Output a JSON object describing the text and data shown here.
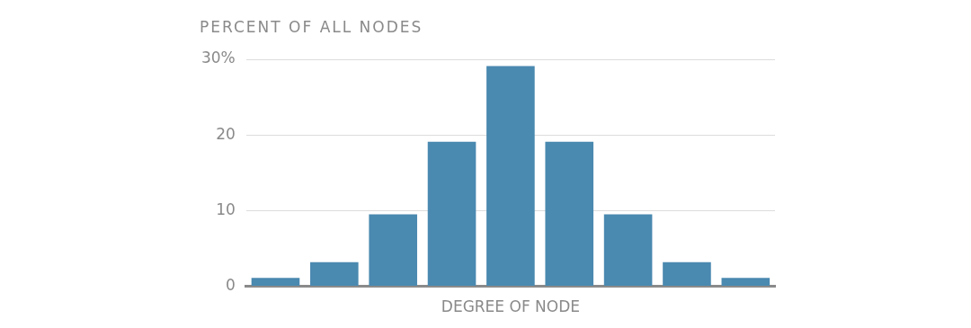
{
  "chart_data": {
    "type": "bar",
    "ylabel": "PERCENT OF ALL NODES",
    "xlabel": "DEGREE OF NODE",
    "categories": [
      null,
      null,
      null,
      null,
      null,
      null,
      null,
      null,
      null
    ],
    "values": [
      1.1,
      3.2,
      9.5,
      19.1,
      29.1,
      19.1,
      9.5,
      3.2,
      1.1
    ],
    "color": "#4a89b0",
    "ylim": [
      0,
      30
    ],
    "yticks": [
      0,
      10,
      20,
      {
        "value": 30,
        "label": "30%"
      }
    ],
    "grid": "y",
    "legend": false
  }
}
